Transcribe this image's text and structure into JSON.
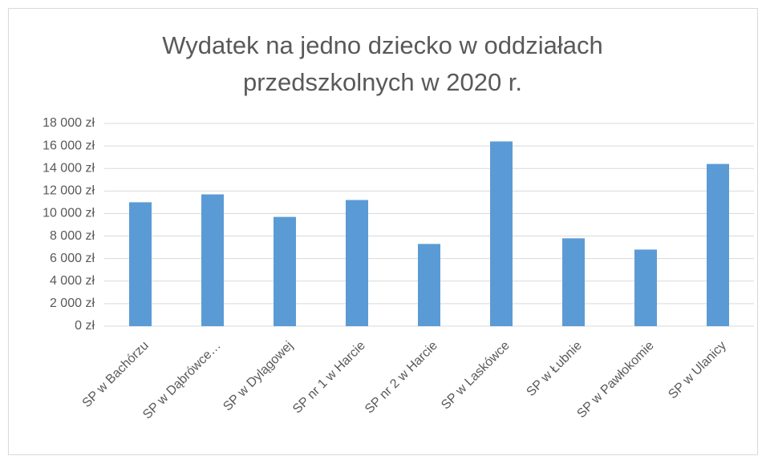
{
  "chart_data": {
    "type": "bar",
    "title": "Wydatek na jedno dziecko w oddziałach przedszkolnych w 2020 r.",
    "categories": [
      "SP w Bachórzu",
      "SP w Dąbrówce…",
      "SP w Dylągowej",
      "SP nr 1 w Harcie",
      "SP nr 2 w Harcie",
      "SP w Laskówce",
      "SP w Łubnie",
      "SP w Pawłokomie",
      "SP w Ulanicy"
    ],
    "values": [
      11000,
      11700,
      9700,
      11200,
      7300,
      16400,
      7800,
      6800,
      14400
    ],
    "color": "#5b9bd5",
    "ylim": [
      0,
      18000
    ],
    "yticks": [
      {
        "value": 0,
        "label": "0 zł"
      },
      {
        "value": 2000,
        "label": "2 000 zł"
      },
      {
        "value": 4000,
        "label": "4 000 zł"
      },
      {
        "value": 6000,
        "label": "6 000 zł"
      },
      {
        "value": 8000,
        "label": "8 000 zł"
      },
      {
        "value": 10000,
        "label": "10 000 zł"
      },
      {
        "value": 12000,
        "label": "12 000 zł"
      },
      {
        "value": 14000,
        "label": "14 000 zł"
      },
      {
        "value": 16000,
        "label": "16 000 zł"
      },
      {
        "value": 18000,
        "label": "18 000 zł"
      }
    ],
    "grid": true
  }
}
